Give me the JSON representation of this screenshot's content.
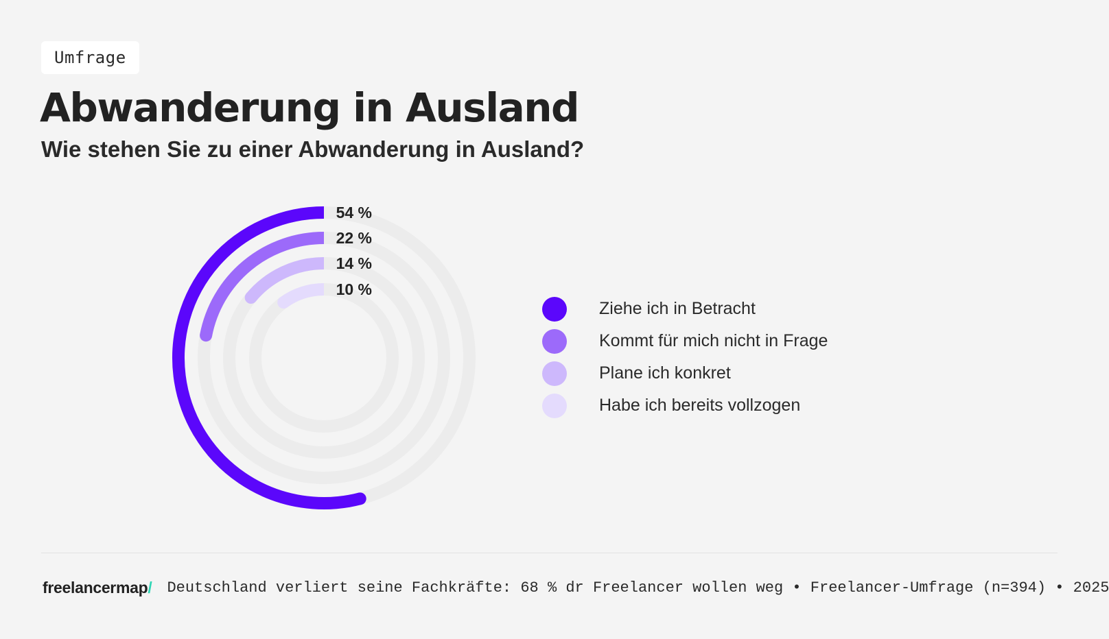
{
  "header": {
    "badge": "Umfrage",
    "title": "Abwanderung in Ausland",
    "subtitle": "Wie stehen Sie zu einer Abwanderung in Ausland?"
  },
  "chart_data": {
    "type": "radial-bar",
    "title": "Abwanderung in Ausland",
    "subtitle": "Wie stehen Sie zu einer Abwanderung in Ausland?",
    "unit": "%",
    "legend_position": "right",
    "track_color": "#ececec",
    "series": [
      {
        "name": "Ziehe ich in Betracht",
        "value": 54,
        "label": "54 %",
        "color": "#5b07fb"
      },
      {
        "name": "Kommt für mich nicht in Frage",
        "value": 22,
        "label": "22 %",
        "color": "#9c6afa"
      },
      {
        "name": "Plane ich konkret",
        "value": 14,
        "label": "14 %",
        "color": "#cdb8fc"
      },
      {
        "name": "Habe ich bereits vollzogen",
        "value": 10,
        "label": "10 %",
        "color": "#e4dbfd"
      }
    ]
  },
  "footer": {
    "logo_text": "freelancermap",
    "logo_slash": "/",
    "logo_accent_color": "#2fd6b5",
    "source": "Deutschland verliert seine Fachkräfte: 68 % dr Freelancer wollen weg • Freelancer-Umfrage (n=394) • 2025"
  }
}
